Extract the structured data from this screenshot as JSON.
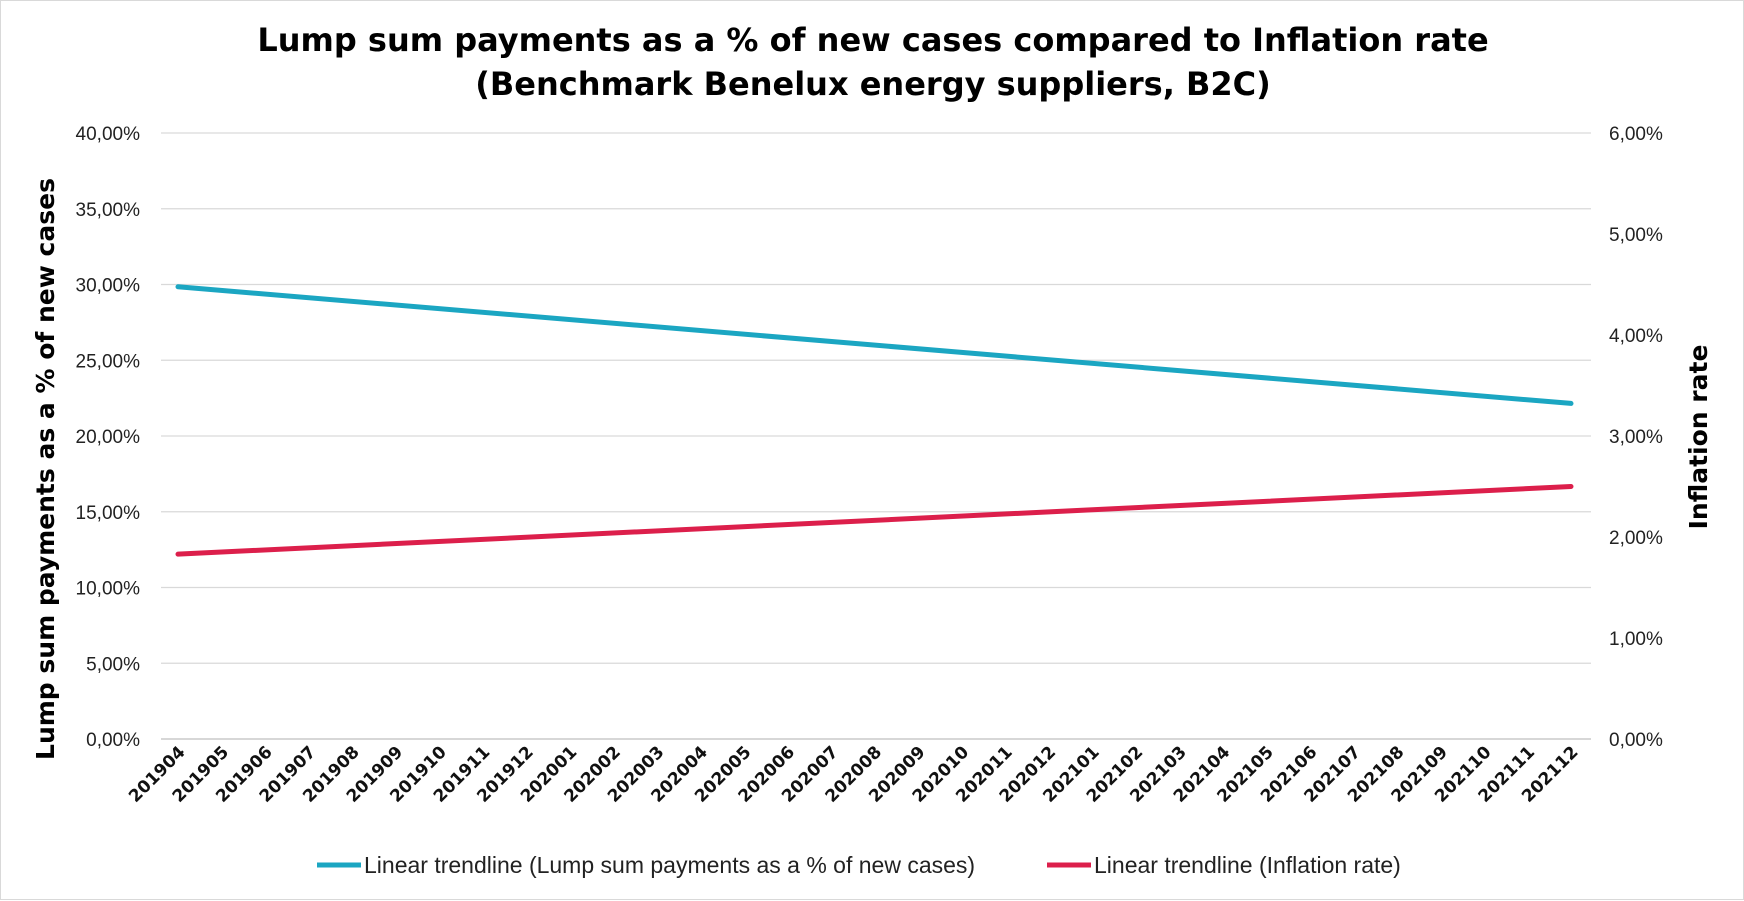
{
  "chart_data": {
    "type": "line",
    "title_lines": [
      "Lump sum payments as a % of new cases compared to Inflation rate",
      "(Benchmark Benelux energy suppliers, B2C)"
    ],
    "categories": [
      "201904",
      "201905",
      "201906",
      "201907",
      "201908",
      "201909",
      "201910",
      "201911",
      "201912",
      "202001",
      "202002",
      "202003",
      "202004",
      "202005",
      "202006",
      "202007",
      "202008",
      "202009",
      "202010",
      "202011",
      "202012",
      "202101",
      "202102",
      "202103",
      "202104",
      "202105",
      "202106",
      "202107",
      "202108",
      "202109",
      "202110",
      "202111",
      "202112"
    ],
    "y_left": {
      "label": "Lump sum payments as a % of new cases",
      "ylim": [
        0,
        40
      ],
      "ticks": [
        0,
        5,
        10,
        15,
        20,
        25,
        30,
        35,
        40
      ],
      "tick_labels": [
        "0,00%",
        "5,00%",
        "10,00%",
        "15,00%",
        "20,00%",
        "25,00%",
        "30,00%",
        "35,00%",
        "40,00%"
      ]
    },
    "y_right": {
      "label": "Inflation rate",
      "ylim": [
        0,
        6
      ],
      "ticks": [
        0,
        1,
        2,
        3,
        4,
        5,
        6
      ],
      "tick_labels": [
        "0,00%",
        "1,00%",
        "2,00%",
        "3,00%",
        "4,00%",
        "5,00%",
        "6,00%"
      ]
    },
    "grid": true,
    "legend_position": "bottom",
    "series": [
      {
        "name": "Linear trendline (Lump sum payments as a % of new cases)",
        "axis": "left",
        "color": "#1ba6c2",
        "start": 29.85,
        "end": 22.15
      },
      {
        "name": "Linear trendline (Inflation rate)",
        "axis": "right",
        "color": "#dc1f4b",
        "start": 1.83,
        "end": 2.5
      }
    ]
  }
}
